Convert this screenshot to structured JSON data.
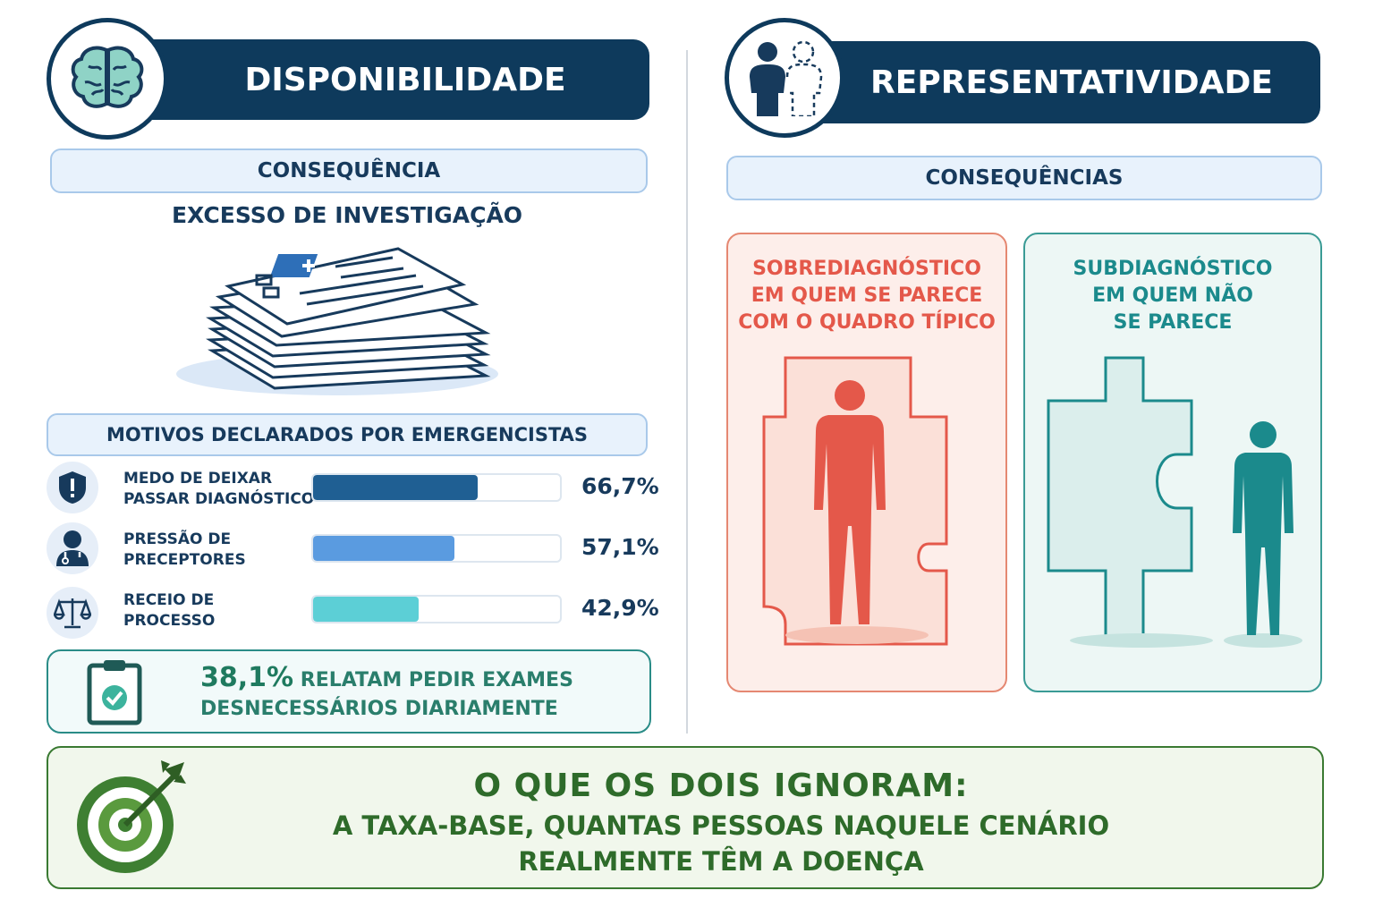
{
  "left": {
    "title": "DISPONIBILIDADE",
    "icon": "brain-icon",
    "consequence_header": "CONSEQUÊNCIA",
    "consequence_text": "EXCESSO DE INVESTIGAÇÃO",
    "reasons_header": "MOTIVOS DECLARADOS POR EMERGENCISTAS",
    "reasons": [
      {
        "line1": "MEDO DE DEIXAR",
        "line2": "PASSAR DIAGNÓSTICO",
        "percent_label": "66,7%",
        "value": 66.7,
        "icon": "shield-alert-icon",
        "color": "#1f5f93"
      },
      {
        "line1": "PRESSÃO DE",
        "line2": "PRECEPTORES",
        "percent_label": "57,1%",
        "value": 57.1,
        "icon": "doctor-icon",
        "color": "#5a9be0"
      },
      {
        "line1": "RECEIO DE",
        "line2": "PROCESSO",
        "percent_label": "42,9%",
        "value": 42.9,
        "icon": "scales-icon",
        "color": "#5ccfd6"
      }
    ],
    "stat_number": "38,1%",
    "stat_text_1": "RELATAM PEDIR EXAMES",
    "stat_text_2": "DESNECESSÁRIOS DIARIAMENTE"
  },
  "right": {
    "title": "REPRESENTATIVIDADE",
    "icon": "people-icon",
    "consequences_header": "CONSEQUÊNCIAS",
    "over": {
      "line1": "SOBREDIAGNÓSTICO",
      "line2": "EM QUEM SE PARECE",
      "line3": "COM O QUADRO TÍPICO"
    },
    "under": {
      "line1": "SUBDIAGNÓSTICO",
      "line2": "EM QUEM NÃO",
      "line3": "SE PARECE"
    }
  },
  "bottom": {
    "title": "O QUE OS DOIS IGNORAM:",
    "line1": "A TAXA-BASE, QUANTAS PESSOAS NAQUELE CENÁRIO",
    "line2": "REALMENTE TÊM A DOENÇA",
    "icon": "target-arrow-icon"
  },
  "colors": {
    "navy": "#0e3a5c",
    "red": "#e4584a",
    "teal": "#1b8a8c",
    "green": "#2e6b2a"
  }
}
